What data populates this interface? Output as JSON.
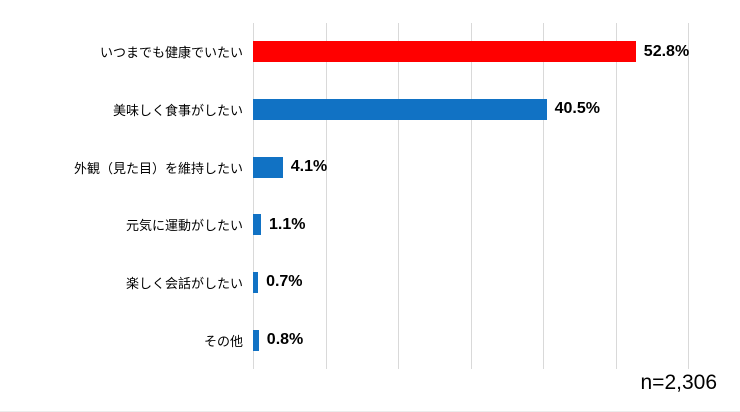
{
  "chart_data": {
    "type": "bar",
    "orientation": "horizontal",
    "title": "",
    "categories": [
      "いつまでも健康でいたい",
      "美味しく食事がしたい",
      "外観（見た目）を維持したい",
      "元気に運動がしたい",
      "楽しく会話がしたい",
      "その他"
    ],
    "values": [
      52.8,
      40.5,
      4.1,
      1.1,
      0.7,
      0.8
    ],
    "value_labels": [
      "52.8%",
      "40.5%",
      "4.1%",
      "1.1%",
      "0.7%",
      "0.8%"
    ],
    "bar_colors": [
      "#ff0000",
      "#1172c4",
      "#1172c4",
      "#1172c4",
      "#1172c4",
      "#1172c4"
    ],
    "xlim": [
      0,
      60
    ],
    "gridline_interval": 10,
    "grid": true,
    "legend": "none",
    "gridline_color": "#d9d9d9",
    "accent_colors": {
      "red": "#ff0000",
      "blue": "#1172c4"
    },
    "sample_size_note": "n=2,306"
  }
}
